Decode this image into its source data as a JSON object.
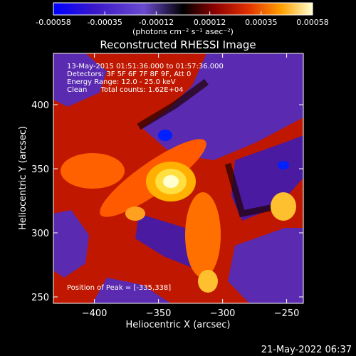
{
  "colorbar": {
    "tick_labels": [
      "-0.00058",
      "-0.00035",
      "-0.00012",
      "0.00012",
      "0.00035",
      "0.00058"
    ],
    "range": [
      -0.00058,
      0.00058
    ],
    "units": "(photons cm⁻² s⁻¹ asec⁻²)"
  },
  "chart_data": {
    "type": "heatmap",
    "title": "Reconstructed RHESSI Image",
    "xlabel": "Heliocentric X (arcsec)",
    "ylabel": "Heliocentric Y (arcsec)",
    "xlim": [
      -432,
      -237
    ],
    "ylim": [
      245,
      440
    ],
    "x_ticks": [
      -400,
      -350,
      -300,
      -250
    ],
    "x_tick_labels": [
      "−400",
      "−350",
      "−300",
      "−250"
    ],
    "y_ticks": [
      250,
      300,
      350,
      400
    ],
    "y_tick_labels": [
      "250",
      "300",
      "350",
      "400"
    ],
    "peak": [
      -335,
      338
    ],
    "annotations": [
      "13-May-2015 01:51:36.000 to 01:57:36.000",
      "Detectors: 3F 5F 6F 7F 8F 9F, Att 0",
      "Energy Range: 12.0 - 25.0 keV",
      "Clean      Total counts: 1.62E+04"
    ],
    "peak_label": "Position of Peak = [-335,338]"
  },
  "timestamp": "21-May-2022 06:37"
}
